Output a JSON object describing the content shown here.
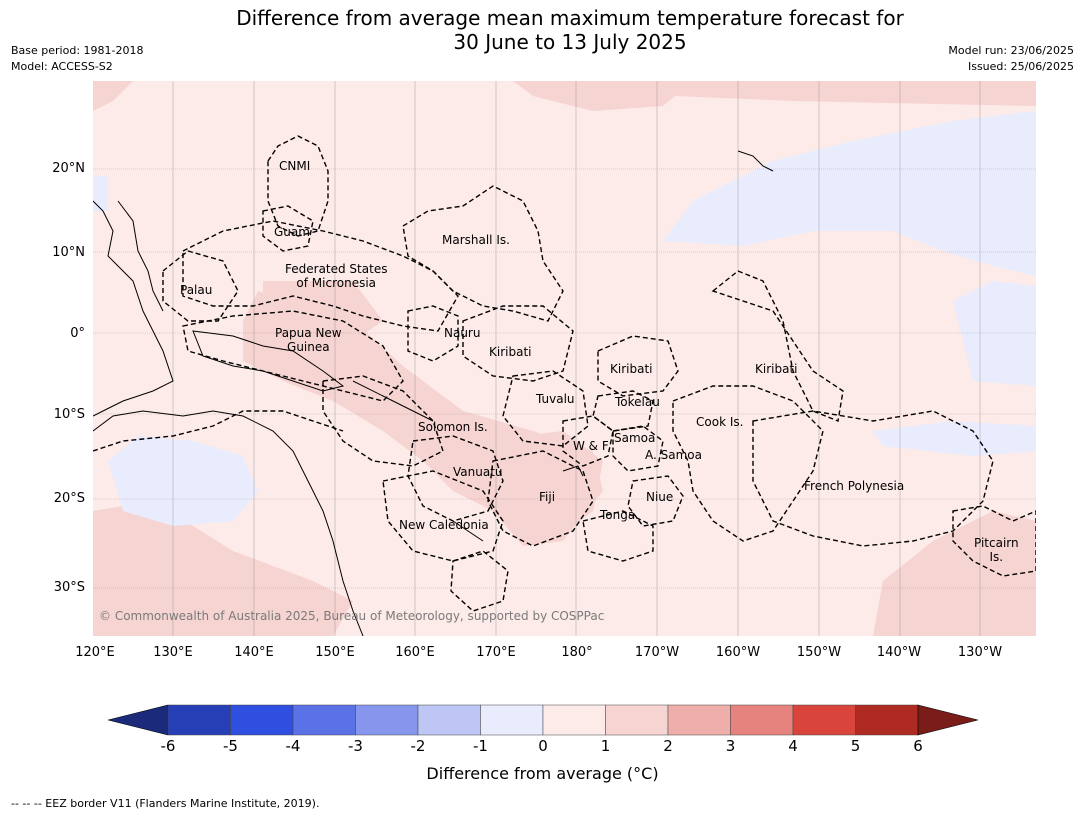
{
  "title_line1": "Difference from average mean maximum temperature forecast for",
  "title_line2": "30 June to 13 July 2025",
  "base_period": "Base period: 1981-2018",
  "model": "Model: ACCESS-S2",
  "model_run": "Model run: 23/06/2025",
  "issued": "Issued: 25/06/2025",
  "copyright": "© Commonwealth of Australia 2025, Bureau of Meteorology, supported by COSPPac",
  "lat_labels": [
    "20°N",
    "10°N",
    "0°",
    "10°S",
    "20°S",
    "30°S"
  ],
  "lon_labels": [
    "120°E",
    "130°E",
    "140°E",
    "150°E",
    "160°E",
    "170°E",
    "180°",
    "170°W",
    "160°W",
    "150°W",
    "140°W",
    "130°W"
  ],
  "places": {
    "cnmi": "CNMI",
    "guam": "Guam",
    "marshall": "Marshall Is.",
    "fsm1": "Federated States",
    "fsm2": "of Micronesia",
    "palau": "Palau",
    "png1": "Papua New",
    "png2": "Guinea",
    "nauru": "Nauru",
    "kiribati_w": "Kiribati",
    "kiribati_c": "Kiribati",
    "kiribati_e": "Kiribati",
    "tuvalu": "Tuvalu",
    "tokelau": "Tokelau",
    "cook": "Cook Is.",
    "solomon": "Solomon Is.",
    "wf": "W & F",
    "samoa": "Samoa",
    "asamoa": "A. Samoa",
    "vanuatu": "Vanuatu",
    "fiji": "Fiji",
    "niue": "Niue",
    "tonga": "Tonga",
    "frpoly": "French Polynesia",
    "newcal": "New Caledonia",
    "pitcairn1": "Pitcairn",
    "pitcairn2": "Is."
  },
  "colorbar": {
    "ticks": [
      "-6",
      "-5",
      "-4",
      "-3",
      "-2",
      "-1",
      "0",
      "1",
      "2",
      "3",
      "4",
      "5",
      "6"
    ],
    "colors": [
      "#1b2a7a",
      "#263fb6",
      "#2f4fe0",
      "#5a72e6",
      "#8796ec",
      "#bdc6f5",
      "#e8ecfc",
      "#fcebe9",
      "#f6d4d2",
      "#eeaea9",
      "#e6837e",
      "#d9453d",
      "#ae2a22",
      "#7a1c17"
    ],
    "label": "Difference from average (°C)"
  },
  "footnote": "-- -- -- EEZ border V11 (Flanders Marine Institute, 2019)."
}
